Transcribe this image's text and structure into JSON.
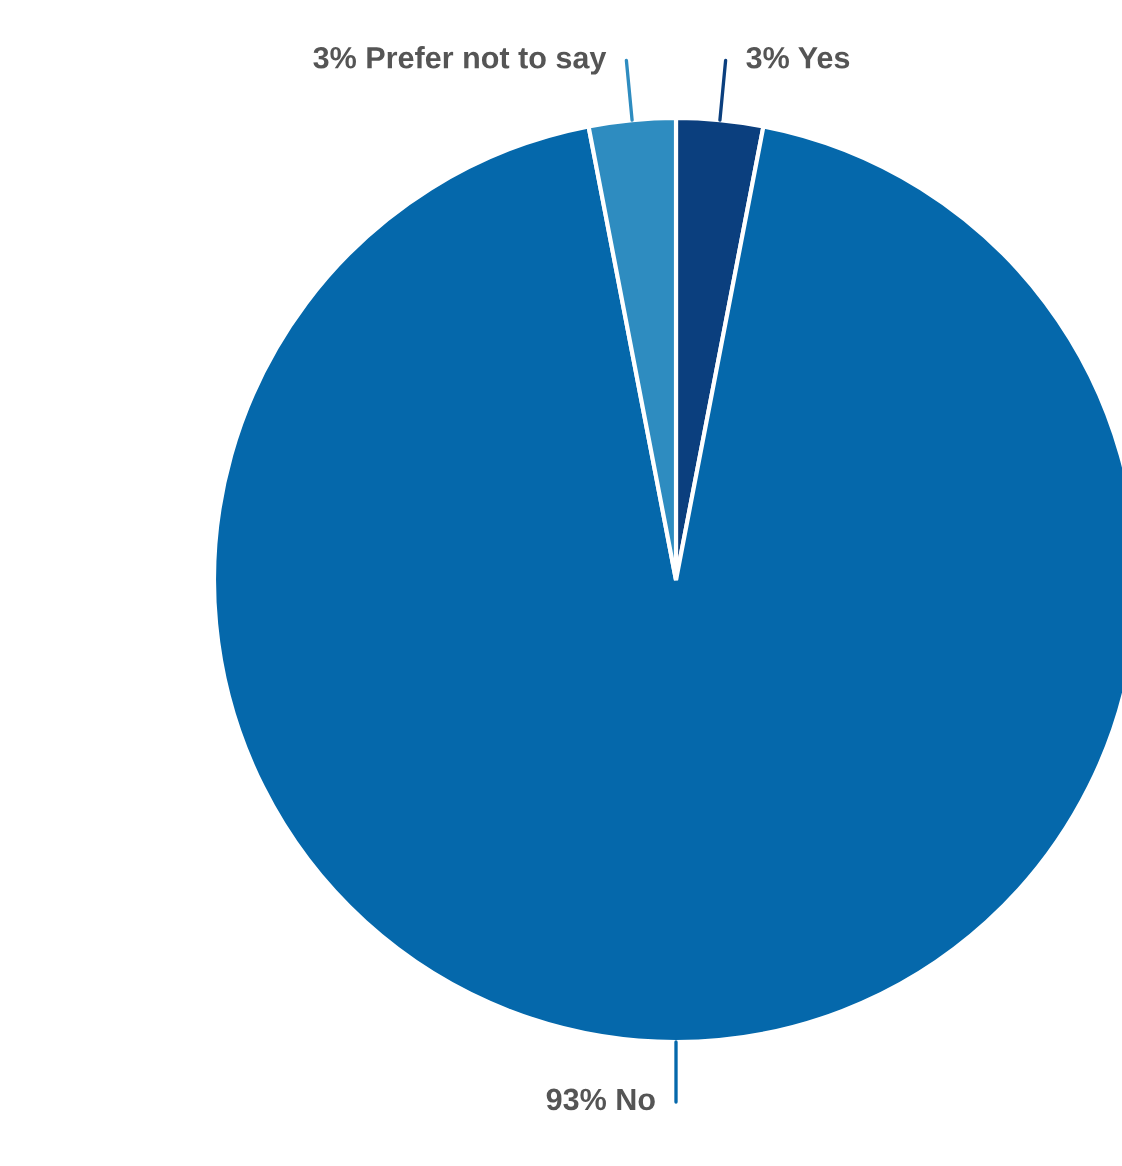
{
  "chart_data": {
    "type": "pie",
    "categories": [
      "Yes",
      "No",
      "Prefer not to say"
    ],
    "values": [
      3,
      93,
      3
    ],
    "colors": [
      "#0b3f7e",
      "#0568ab",
      "#2e8cc0"
    ],
    "value_labels": [
      "3%",
      "93%",
      "3%"
    ]
  }
}
